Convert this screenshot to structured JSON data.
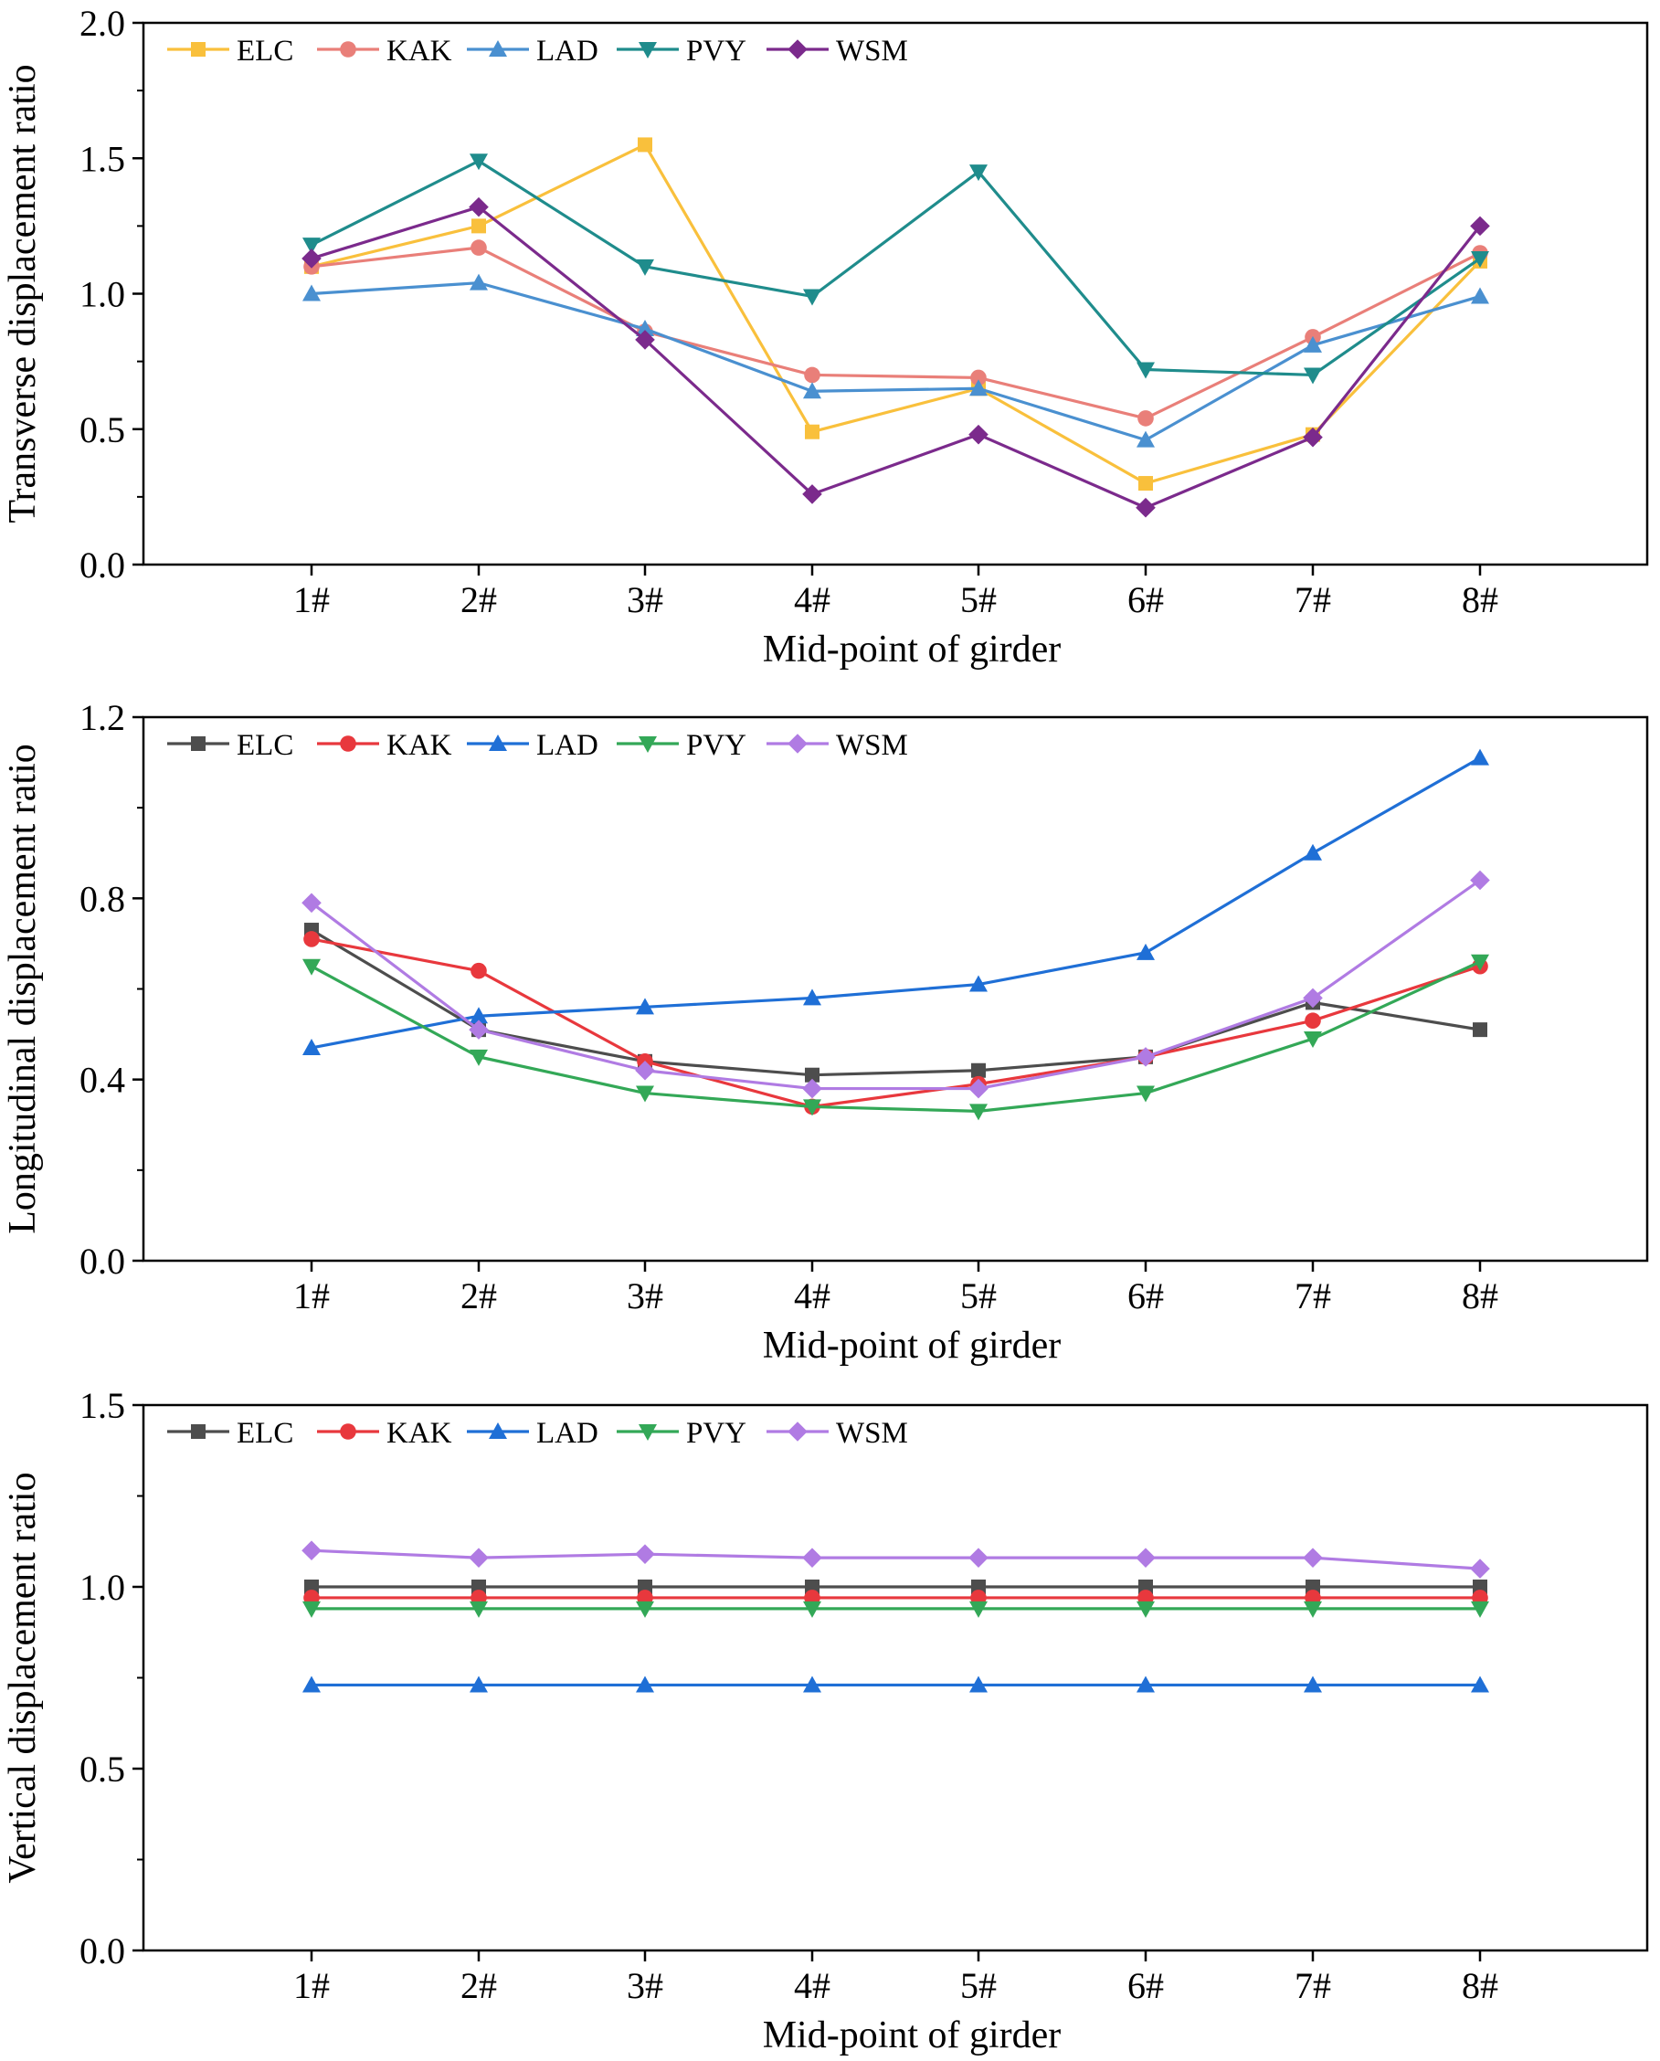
{
  "chart_data": [
    {
      "type": "line",
      "xlabel": "Mid-point of girder",
      "ylabel": "Transverse displacement ratio",
      "categories": [
        "1#",
        "2#",
        "3#",
        "4#",
        "5#",
        "6#",
        "7#",
        "8#"
      ],
      "ylim": [
        0,
        2.0
      ],
      "yticks": [
        "0.0",
        "0.5",
        "1.0",
        "1.5",
        "2.0"
      ],
      "ytick_values": [
        0,
        0.5,
        1.0,
        1.5,
        2.0
      ],
      "legend_position": "top-left",
      "series": [
        {
          "name": "ELC",
          "color": "#F9C03C",
          "marker": "square",
          "values": [
            1.1,
            1.25,
            1.55,
            0.49,
            0.65,
            0.3,
            0.48,
            1.12
          ]
        },
        {
          "name": "KAK",
          "color": "#E97F79",
          "marker": "circle",
          "values": [
            1.1,
            1.17,
            0.86,
            0.7,
            0.69,
            0.54,
            0.84,
            1.15
          ]
        },
        {
          "name": "LAD",
          "color": "#4A90D0",
          "marker": "triangle-up",
          "values": [
            1.0,
            1.04,
            0.87,
            0.64,
            0.65,
            0.46,
            0.81,
            0.99
          ]
        },
        {
          "name": "PVY",
          "color": "#1F8C8C",
          "marker": "triangle-down",
          "values": [
            1.18,
            1.49,
            1.1,
            0.99,
            1.45,
            0.72,
            0.7,
            1.13
          ]
        },
        {
          "name": "WSM",
          "color": "#7B2A8C",
          "marker": "diamond",
          "values": [
            1.13,
            1.32,
            0.83,
            0.26,
            0.48,
            0.21,
            0.47,
            1.25
          ]
        }
      ]
    },
    {
      "type": "line",
      "xlabel": "Mid-point of girder",
      "ylabel": "Longitudinal displacement ratio",
      "categories": [
        "1#",
        "2#",
        "3#",
        "4#",
        "5#",
        "6#",
        "7#",
        "8#"
      ],
      "ylim": [
        0,
        1.2
      ],
      "yticks": [
        "0.0",
        "0.4",
        "0.8",
        "1.2"
      ],
      "ytick_values": [
        0,
        0.4,
        0.8,
        1.2
      ],
      "legend_position": "top-left",
      "series": [
        {
          "name": "ELC",
          "color": "#4D4D4D",
          "marker": "square",
          "values": [
            0.73,
            0.51,
            0.44,
            0.41,
            0.42,
            0.45,
            0.57,
            0.51
          ]
        },
        {
          "name": "KAK",
          "color": "#E8383D",
          "marker": "circle",
          "values": [
            0.71,
            0.64,
            0.44,
            0.34,
            0.39,
            0.45,
            0.53,
            0.65
          ]
        },
        {
          "name": "LAD",
          "color": "#1F6FD6",
          "marker": "triangle-up",
          "values": [
            0.47,
            0.54,
            0.56,
            0.58,
            0.61,
            0.68,
            0.9,
            1.11
          ]
        },
        {
          "name": "PVY",
          "color": "#33A857",
          "marker": "triangle-down",
          "values": [
            0.65,
            0.45,
            0.37,
            0.34,
            0.33,
            0.37,
            0.49,
            0.66
          ]
        },
        {
          "name": "WSM",
          "color": "#B07BE3",
          "marker": "diamond",
          "values": [
            0.79,
            0.51,
            0.42,
            0.38,
            0.38,
            0.45,
            0.58,
            0.84
          ]
        }
      ]
    },
    {
      "type": "line",
      "xlabel": "Mid-point of girder",
      "ylabel": "Vertical displacement ratio",
      "categories": [
        "1#",
        "2#",
        "3#",
        "4#",
        "5#",
        "6#",
        "7#",
        "8#"
      ],
      "ylim": [
        0,
        1.5
      ],
      "yticks": [
        "0.0",
        "0.5",
        "1.0",
        "1.5"
      ],
      "ytick_values": [
        0,
        0.5,
        1.0,
        1.5
      ],
      "legend_position": "top-left",
      "series": [
        {
          "name": "ELC",
          "color": "#4D4D4D",
          "marker": "square",
          "values": [
            1.0,
            1.0,
            1.0,
            1.0,
            1.0,
            1.0,
            1.0,
            1.0
          ]
        },
        {
          "name": "KAK",
          "color": "#E8383D",
          "marker": "circle",
          "values": [
            0.97,
            0.97,
            0.97,
            0.97,
            0.97,
            0.97,
            0.97,
            0.97
          ]
        },
        {
          "name": "LAD",
          "color": "#1F6FD6",
          "marker": "triangle-up",
          "values": [
            0.73,
            0.73,
            0.73,
            0.73,
            0.73,
            0.73,
            0.73,
            0.73
          ]
        },
        {
          "name": "PVY",
          "color": "#33A857",
          "marker": "triangle-down",
          "values": [
            0.94,
            0.94,
            0.94,
            0.94,
            0.94,
            0.94,
            0.94,
            0.94
          ]
        },
        {
          "name": "WSM",
          "color": "#B07BE3",
          "marker": "diamond",
          "values": [
            1.1,
            1.08,
            1.09,
            1.08,
            1.08,
            1.08,
            1.08,
            1.05
          ]
        }
      ]
    }
  ]
}
